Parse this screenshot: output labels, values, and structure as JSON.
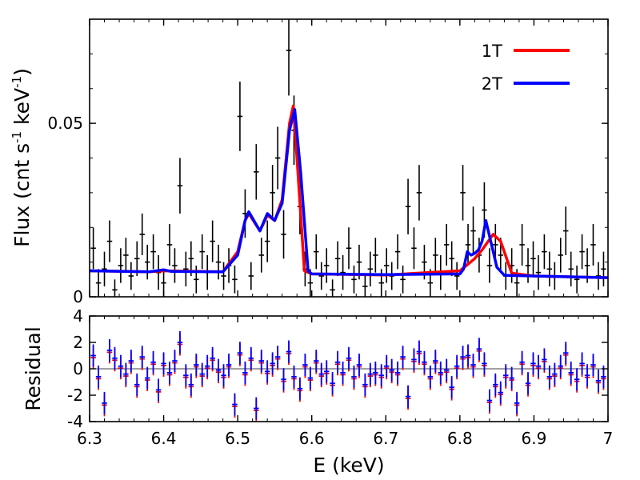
{
  "chart_data": [
    {
      "type": "line",
      "panel": "spectrum",
      "title": "",
      "xlabel": "",
      "ylabel": "Flux (cnt s-1 keV-1)",
      "ylabel_parts": {
        "base": "Flux (cnt s",
        "exp1": "-1",
        "mid": " keV",
        "exp2": "-1",
        "end": ")"
      },
      "xlim": [
        6.3,
        7.0
      ],
      "ylim": [
        0,
        0.08
      ],
      "yticks": [
        {
          "value": 0,
          "label": "0"
        },
        {
          "value": 0.05,
          "label": "0.05"
        }
      ],
      "legend": {
        "placement": "top-right",
        "entries": [
          "1T",
          "2T"
        ]
      },
      "series": [
        {
          "name": "1T",
          "color": "#ff0000",
          "x": [
            6.3,
            6.38,
            6.4,
            6.48,
            6.5,
            6.51,
            6.515,
            6.53,
            6.54,
            6.55,
            6.56,
            6.57,
            6.575,
            6.58,
            6.59,
            6.6,
            6.7,
            6.8,
            6.82,
            6.83,
            6.845,
            6.855,
            6.87,
            6.9,
            7.0
          ],
          "y": [
            0.0075,
            0.0072,
            0.0075,
            0.0072,
            0.013,
            0.022,
            0.024,
            0.019,
            0.0235,
            0.022,
            0.028,
            0.05,
            0.055,
            0.04,
            0.0075,
            0.0066,
            0.0063,
            0.0075,
            0.011,
            0.0135,
            0.018,
            0.016,
            0.0068,
            0.006,
            0.0055
          ]
        },
        {
          "name": "2T",
          "color": "#0000ff",
          "x": [
            6.3,
            6.38,
            6.4,
            6.41,
            6.48,
            6.5,
            6.51,
            6.515,
            6.53,
            6.54,
            6.55,
            6.56,
            6.57,
            6.577,
            6.585,
            6.595,
            6.6,
            6.7,
            6.8,
            6.805,
            6.81,
            6.815,
            6.82,
            6.825,
            6.83,
            6.835,
            6.84,
            6.85,
            6.86,
            6.9,
            7.0
          ],
          "y": [
            0.0075,
            0.0072,
            0.0078,
            0.0073,
            0.0072,
            0.012,
            0.022,
            0.0245,
            0.019,
            0.024,
            0.022,
            0.027,
            0.048,
            0.054,
            0.036,
            0.0075,
            0.0066,
            0.0064,
            0.0066,
            0.008,
            0.013,
            0.012,
            0.0125,
            0.0135,
            0.016,
            0.022,
            0.0175,
            0.0085,
            0.0062,
            0.006,
            0.0055
          ]
        }
      ],
      "data_points": {
        "x": [
          6.305,
          6.312,
          6.32,
          6.327,
          6.334,
          6.342,
          6.349,
          6.356,
          6.364,
          6.371,
          6.378,
          6.386,
          6.393,
          6.4,
          6.408,
          6.415,
          6.422,
          6.43,
          6.437,
          6.444,
          6.452,
          6.459,
          6.466,
          6.474,
          6.481,
          6.488,
          6.496,
          6.503,
          6.51,
          6.518,
          6.525,
          6.532,
          6.54,
          6.547,
          6.554,
          6.562,
          6.569,
          6.576,
          6.584,
          6.591,
          6.598,
          6.606,
          6.613,
          6.62,
          6.628,
          6.635,
          6.642,
          6.65,
          6.657,
          6.664,
          6.672,
          6.679,
          6.686,
          6.694,
          6.701,
          6.708,
          6.716,
          6.723,
          6.73,
          6.738,
          6.745,
          6.752,
          6.76,
          6.767,
          6.774,
          6.782,
          6.789,
          6.796,
          6.804,
          6.811,
          6.818,
          6.826,
          6.833,
          6.84,
          6.848,
          6.855,
          6.862,
          6.87,
          6.877,
          6.884,
          6.892,
          6.899,
          6.906,
          6.914,
          6.921,
          6.928,
          6.936,
          6.943,
          6.95,
          6.958,
          6.965,
          6.972,
          6.98,
          6.987,
          6.994
        ],
        "y": [
          0.014,
          0.004,
          0.008,
          0.016,
          0.002,
          0.009,
          0.012,
          0.006,
          0.011,
          0.018,
          0.01,
          0.013,
          0.007,
          0.004,
          0.015,
          0.009,
          0.032,
          0.008,
          0.011,
          0.005,
          0.013,
          0.007,
          0.016,
          0.01,
          0.006,
          0.009,
          0.005,
          0.052,
          0.024,
          0.006,
          0.036,
          0.012,
          0.016,
          0.03,
          0.04,
          0.018,
          0.071,
          0.048,
          0.026,
          0.008,
          0.004,
          0.013,
          0.006,
          0.009,
          0.002,
          0.011,
          0.007,
          0.014,
          0.005,
          0.01,
          0.003,
          0.008,
          0.012,
          0.004,
          0.009,
          0.006,
          0.013,
          0.005,
          0.026,
          0.014,
          0.03,
          0.01,
          0.004,
          0.012,
          0.007,
          0.015,
          0.011,
          0.006,
          0.03,
          0.015,
          0.019,
          0.012,
          0.025,
          0.009,
          0.015,
          0.012,
          0.006,
          0.009,
          0.004,
          0.015,
          0.009,
          0.011,
          0.007,
          0.013,
          0.008,
          0.006,
          0.012,
          0.019,
          0.008,
          0.005,
          0.013,
          0.009,
          0.015,
          0.006,
          0.008
        ],
        "yerr": [
          0.006,
          0.004,
          0.005,
          0.006,
          0.003,
          0.005,
          0.005,
          0.004,
          0.005,
          0.006,
          0.005,
          0.005,
          0.005,
          0.004,
          0.006,
          0.005,
          0.008,
          0.005,
          0.005,
          0.004,
          0.005,
          0.005,
          0.006,
          0.005,
          0.004,
          0.005,
          0.004,
          0.01,
          0.007,
          0.004,
          0.008,
          0.005,
          0.006,
          0.008,
          0.009,
          0.007,
          0.013,
          0.01,
          0.008,
          0.005,
          0.004,
          0.005,
          0.004,
          0.005,
          0.003,
          0.005,
          0.005,
          0.006,
          0.004,
          0.005,
          0.003,
          0.005,
          0.005,
          0.004,
          0.005,
          0.004,
          0.005,
          0.004,
          0.008,
          0.006,
          0.008,
          0.005,
          0.004,
          0.005,
          0.005,
          0.006,
          0.005,
          0.004,
          0.008,
          0.006,
          0.007,
          0.005,
          0.008,
          0.005,
          0.006,
          0.005,
          0.004,
          0.005,
          0.004,
          0.006,
          0.005,
          0.005,
          0.005,
          0.005,
          0.005,
          0.004,
          0.005,
          0.007,
          0.005,
          0.004,
          0.005,
          0.005,
          0.006,
          0.004,
          0.005
        ],
        "xerr": 0.0035
      }
    },
    {
      "type": "scatter",
      "panel": "residual",
      "title": "",
      "xlabel": "E (keV)",
      "ylabel": "Residual",
      "xlim": [
        6.3,
        7.0
      ],
      "ylim": [
        -4,
        4
      ],
      "xticks": [
        {
          "value": 6.3,
          "label": "6.3"
        },
        {
          "value": 6.4,
          "label": "6.4"
        },
        {
          "value": 6.5,
          "label": "6.5"
        },
        {
          "value": 6.6,
          "label": "6.6"
        },
        {
          "value": 6.7,
          "label": "6.7"
        },
        {
          "value": 6.8,
          "label": "6.8"
        },
        {
          "value": 6.9,
          "label": "6.9"
        },
        {
          "value": 7.0,
          "label": "7"
        }
      ],
      "yticks": [
        {
          "value": -4,
          "label": "-4"
        },
        {
          "value": -2,
          "label": "-2"
        },
        {
          "value": 0,
          "label": "0"
        },
        {
          "value": 2,
          "label": "2"
        },
        {
          "value": 4,
          "label": "4"
        }
      ],
      "zero_line": true,
      "series": [
        {
          "name": "1T",
          "color": "#ff0000"
        },
        {
          "name": "2T",
          "color": "#0000ff"
        }
      ],
      "points": {
        "x": [
          6.305,
          6.312,
          6.32,
          6.327,
          6.334,
          6.342,
          6.349,
          6.356,
          6.364,
          6.371,
          6.378,
          6.386,
          6.393,
          6.4,
          6.408,
          6.415,
          6.422,
          6.43,
          6.437,
          6.444,
          6.452,
          6.459,
          6.466,
          6.474,
          6.481,
          6.488,
          6.496,
          6.503,
          6.51,
          6.518,
          6.525,
          6.532,
          6.54,
          6.547,
          6.554,
          6.562,
          6.569,
          6.576,
          6.584,
          6.591,
          6.598,
          6.606,
          6.613,
          6.62,
          6.628,
          6.635,
          6.642,
          6.65,
          6.657,
          6.664,
          6.672,
          6.679,
          6.686,
          6.694,
          6.701,
          6.708,
          6.716,
          6.723,
          6.73,
          6.738,
          6.745,
          6.752,
          6.76,
          6.767,
          6.774,
          6.782,
          6.789,
          6.796,
          6.804,
          6.811,
          6.818,
          6.826,
          6.833,
          6.84,
          6.848,
          6.855,
          6.862,
          6.87,
          6.877,
          6.884,
          6.892,
          6.899,
          6.906,
          6.914,
          6.921,
          6.928,
          6.936,
          6.943,
          6.95,
          6.958,
          6.965,
          6.972,
          6.98,
          6.987,
          6.994
        ],
        "y": [
          1.0,
          -0.6,
          -2.6,
          1.4,
          0.8,
          0.2,
          -0.4,
          0.6,
          -1.2,
          0.9,
          -0.7,
          0.5,
          -1.6,
          0.4,
          -0.3,
          0.6,
          2.0,
          -0.5,
          -1.2,
          0.3,
          -0.4,
          0.2,
          0.8,
          -0.1,
          -0.5,
          0.3,
          -2.7,
          1.2,
          -0.3,
          0.8,
          -3.0,
          0.6,
          -0.2,
          0.4,
          0.9,
          -0.8,
          1.3,
          -0.6,
          -1.5,
          0.3,
          -0.7,
          0.6,
          -0.4,
          -0.2,
          -1.1,
          0.5,
          -0.3,
          0.8,
          -0.6,
          0.3,
          -1.2,
          -0.4,
          -0.3,
          -0.5,
          0.2,
          -0.1,
          -0.3,
          0.9,
          -2.1,
          0.7,
          1.3,
          0.5,
          -0.6,
          0.6,
          -0.3,
          -0.1,
          -1.4,
          0.2,
          0.9,
          1.0,
          0.3,
          1.5,
          0.4,
          -2.4,
          -1.2,
          -1.8,
          -0.5,
          -0.7,
          -2.6,
          0.5,
          -1.1,
          0.4,
          0.2,
          0.7,
          -0.6,
          -0.4,
          0.2,
          1.2,
          -0.3,
          -0.8,
          0.4,
          -0.5,
          0.3,
          -0.9,
          -0.6
        ],
        "yerr": 0.85,
        "xerr": 0.0035
      }
    }
  ]
}
